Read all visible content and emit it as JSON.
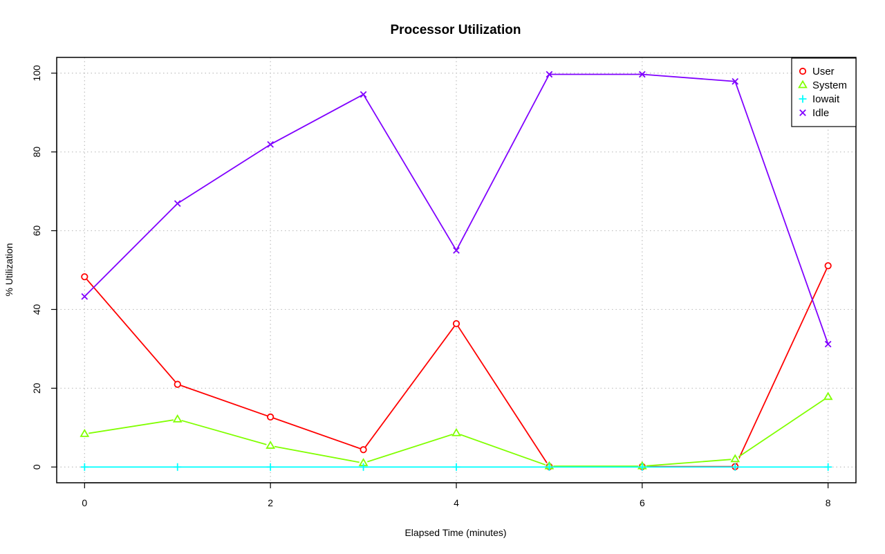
{
  "chart_data": {
    "type": "line",
    "title": "Processor Utilization",
    "xlabel": "Elapsed Time (minutes)",
    "ylabel": "% Utilization",
    "x": [
      0,
      1,
      2,
      3,
      4,
      5,
      6,
      7,
      8
    ],
    "xlim": [
      -0.3,
      8.3
    ],
    "ylim": [
      -4,
      104
    ],
    "xticks": [
      0,
      2,
      4,
      6,
      8
    ],
    "yticks": [
      0,
      20,
      40,
      60,
      80,
      100
    ],
    "grid": true,
    "legend_position": "top-right",
    "series": [
      {
        "name": "User",
        "color": "#ff0000",
        "marker": "circle",
        "values": [
          48.3,
          21.0,
          12.7,
          4.4,
          36.4,
          0.1,
          0.1,
          0.1,
          51.1
        ]
      },
      {
        "name": "System",
        "color": "#80ff00",
        "marker": "triangle",
        "values": [
          8.4,
          12.1,
          5.4,
          1.0,
          8.6,
          0.2,
          0.2,
          2.0,
          17.8
        ]
      },
      {
        "name": "Iowait",
        "color": "#00ffff",
        "marker": "plus",
        "values": [
          0.0,
          0.0,
          0.0,
          0.0,
          0.0,
          0.0,
          0.0,
          0.0,
          0.0
        ]
      },
      {
        "name": "Idle",
        "color": "#8000ff",
        "marker": "cross",
        "values": [
          43.3,
          66.9,
          81.9,
          94.6,
          55.0,
          99.7,
          99.7,
          97.9,
          31.2
        ]
      }
    ]
  }
}
